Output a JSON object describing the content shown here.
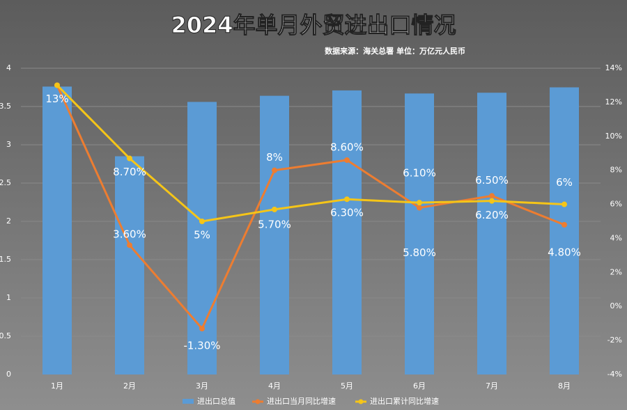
{
  "chart_data": {
    "type": "bar-line",
    "title": "2024年单月外贸进出口情况",
    "subtitle": "数据来源：海关总署 单位：万亿元人民币",
    "categories": [
      "1月",
      "2月",
      "3月",
      "4月",
      "5月",
      "6月",
      "7月",
      "8月"
    ],
    "ylim": [
      0,
      4
    ],
    "yticks": [
      0,
      0.5,
      1,
      1.5,
      2,
      2.5,
      3,
      3.5,
      4
    ],
    "y2lim": [
      -4,
      14
    ],
    "y2ticks": [
      {
        "value": -4,
        "label": "-4%"
      },
      {
        "value": -2,
        "label": "-2%"
      },
      {
        "value": 0,
        "label": "0%"
      },
      {
        "value": 2,
        "label": "2%"
      },
      {
        "value": 4,
        "label": "4%"
      },
      {
        "value": 6,
        "label": "6%"
      },
      {
        "value": 8,
        "label": "8%"
      },
      {
        "value": 10,
        "label": "10%"
      },
      {
        "value": 12,
        "label": "12%"
      },
      {
        "value": 14,
        "label": "14%"
      }
    ],
    "grid": true,
    "series": [
      {
        "name": "进出口总值",
        "type": "bar",
        "color": "#5b9bd5",
        "values": [
          3.76,
          2.85,
          3.56,
          3.64,
          3.71,
          3.67,
          3.68,
          3.75
        ]
      },
      {
        "name": "进出口当月同比增速",
        "type": "line",
        "axis": "y2",
        "color": "#ed7d31",
        "values": [
          13,
          3.6,
          -1.3,
          8,
          8.6,
          5.8,
          6.5,
          4.8
        ],
        "value_labels": [
          "13%",
          "3.60%",
          "-1.30%",
          "8%",
          "8.60%",
          "5.80%",
          "6.50%",
          "4.80%"
        ]
      },
      {
        "name": "进出口累计同比增速",
        "type": "line",
        "axis": "y2",
        "color": "#f5c518",
        "values": [
          13,
          8.7,
          5,
          5.7,
          6.3,
          6.1,
          6.2,
          6
        ],
        "value_labels": [
          null,
          "8.70%",
          "5%",
          "5.70%",
          "6.30%",
          "6.10%",
          "6.20%",
          "6%"
        ]
      }
    ]
  }
}
